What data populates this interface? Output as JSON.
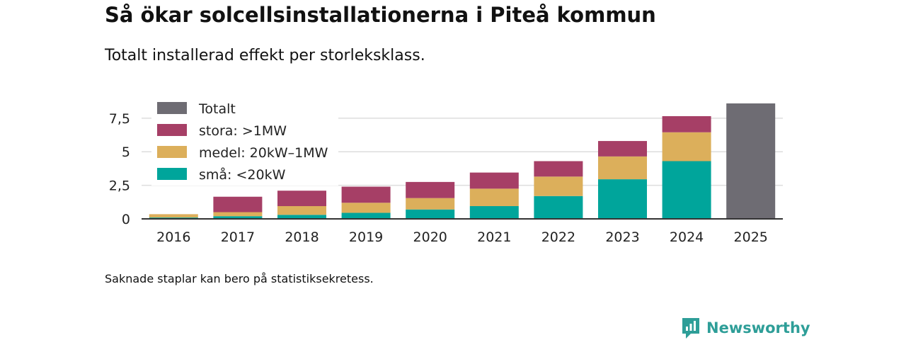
{
  "title": "Så ökar solcellsinstallationerna i Piteå kommun",
  "subtitle": "Totalt installerad effekt per storleksklass.",
  "note": "Saknade staplar kan bero på statistiksekretess.",
  "brand": "Newsworthy",
  "colors": {
    "total": "#6e6c73",
    "large": "#a63f66",
    "medium": "#dcaf5b",
    "small": "#00a59b",
    "grid": "#dddddd",
    "axis": "#333333",
    "brand": "#2e9e98"
  },
  "chart_data": {
    "type": "bar",
    "stacked": true,
    "categories": [
      "2016",
      "2017",
      "2018",
      "2019",
      "2020",
      "2021",
      "2022",
      "2023",
      "2024",
      "2025"
    ],
    "series": [
      {
        "name": "små: <20kW",
        "key": "small",
        "values": [
          0.1,
          0.2,
          0.3,
          0.45,
          0.7,
          0.95,
          1.7,
          2.95,
          4.3,
          null
        ]
      },
      {
        "name": "medel: 20kW–1MW",
        "key": "medium",
        "values": [
          0.25,
          0.3,
          0.65,
          0.75,
          0.85,
          1.3,
          1.45,
          1.7,
          2.15,
          null
        ]
      },
      {
        "name": "stora: >1MW",
        "key": "large",
        "values": [
          0.0,
          1.15,
          1.15,
          1.2,
          1.2,
          1.2,
          1.15,
          1.15,
          1.2,
          null
        ]
      },
      {
        "name": "Totalt",
        "key": "total",
        "values": [
          null,
          null,
          null,
          null,
          null,
          null,
          null,
          null,
          null,
          8.6
        ]
      }
    ],
    "legend": [
      "Totalt",
      "stora: >1MW",
      "medel: 20kW–1MW",
      "små: <20kW"
    ],
    "legend_placement": "top-left",
    "yticks": [
      0,
      2.5,
      5,
      7.5
    ],
    "ytick_labels": [
      "0",
      "2,5",
      "5",
      "7,5"
    ],
    "ylim": [
      0,
      8.6
    ],
    "grid": true,
    "xlabel": "",
    "ylabel": ""
  }
}
